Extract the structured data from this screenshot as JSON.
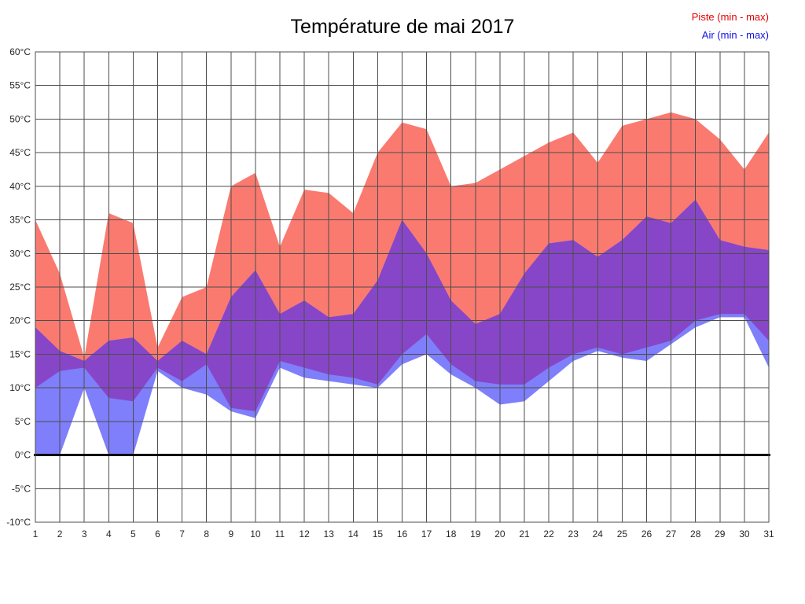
{
  "title": "Température de mai 2017",
  "legend": {
    "piste": {
      "label": "Piste (min - max)",
      "color": "#e60000"
    },
    "air": {
      "label": "Air (min - max)",
      "color": "#1212e6"
    }
  },
  "chart_data": {
    "type": "area",
    "title": "Température de mai 2017",
    "xlabel": "",
    "ylabel": "",
    "x": [
      1,
      2,
      3,
      4,
      5,
      6,
      7,
      8,
      9,
      10,
      11,
      12,
      13,
      14,
      15,
      16,
      17,
      18,
      19,
      20,
      21,
      22,
      23,
      24,
      25,
      26,
      27,
      28,
      29,
      30,
      31
    ],
    "ylim": [
      -10,
      60
    ],
    "ytick_step": 5,
    "yticks": [
      {
        "v": 60,
        "label": "60°C"
      },
      {
        "v": 55,
        "label": "55°C"
      },
      {
        "v": 50,
        "label": "50°C"
      },
      {
        "v": 45,
        "label": "45°C"
      },
      {
        "v": 40,
        "label": "40°C"
      },
      {
        "v": 35,
        "label": "35°C"
      },
      {
        "v": 30,
        "label": "30°C"
      },
      {
        "v": 25,
        "label": "25°C"
      },
      {
        "v": 20,
        "label": "20°C"
      },
      {
        "v": 15,
        "label": "15°C"
      },
      {
        "v": 10,
        "label": "10°C"
      },
      {
        "v": 5,
        "label": "5°C"
      },
      {
        "v": 0,
        "label": "0°C"
      },
      {
        "v": -5,
        "label": "-5°C"
      },
      {
        "v": -10,
        "label": "-10°C"
      }
    ],
    "grid": true,
    "legend_position": "top-right",
    "series": [
      {
        "name": "piste_max",
        "label": "Piste max",
        "values": [
          35,
          27,
          14.5,
          36,
          34.5,
          16,
          23.5,
          25,
          40,
          42,
          31,
          39.5,
          39,
          36,
          45,
          49.5,
          48.5,
          40,
          40.5,
          42.5,
          44.5,
          46.5,
          48,
          43.5,
          49,
          50,
          51,
          50,
          47,
          42.5,
          48
        ]
      },
      {
        "name": "piste_min",
        "label": "Piste min",
        "values": [
          10,
          12.5,
          13,
          8.5,
          8,
          13,
          11,
          13.5,
          7,
          6.5,
          14,
          13,
          12,
          11.5,
          10.5,
          15,
          18,
          13.5,
          11,
          10.5,
          10.5,
          13,
          15,
          16,
          15,
          16,
          17,
          20,
          21,
          21,
          17
        ]
      },
      {
        "name": "air_max",
        "label": "Air max",
        "values": [
          19,
          15.5,
          14,
          17,
          17.5,
          14,
          17,
          15,
          23.5,
          27.5,
          21,
          23,
          20.5,
          21,
          26,
          35,
          30,
          23,
          19.5,
          21,
          27,
          31.5,
          32,
          29.5,
          32,
          35.5,
          34.5,
          38,
          32,
          31,
          30.5
        ]
      },
      {
        "name": "air_min",
        "label": "Air min",
        "values": [
          0,
          0,
          10,
          0,
          0,
          12.5,
          10,
          9,
          6.5,
          5.5,
          13,
          11.5,
          11,
          10.5,
          10,
          13.5,
          15,
          12,
          10,
          7.5,
          8,
          11,
          14,
          15.5,
          14.5,
          14,
          16.5,
          19,
          20.5,
          20.5,
          13
        ]
      }
    ],
    "colors": {
      "piste_band": "#FA7A70",
      "air_band": "#7F7FFB",
      "overlap_band": "#8746C8",
      "grid": "#4d4d4d",
      "zero_line": "#000000",
      "axis_text": "#262626"
    }
  }
}
